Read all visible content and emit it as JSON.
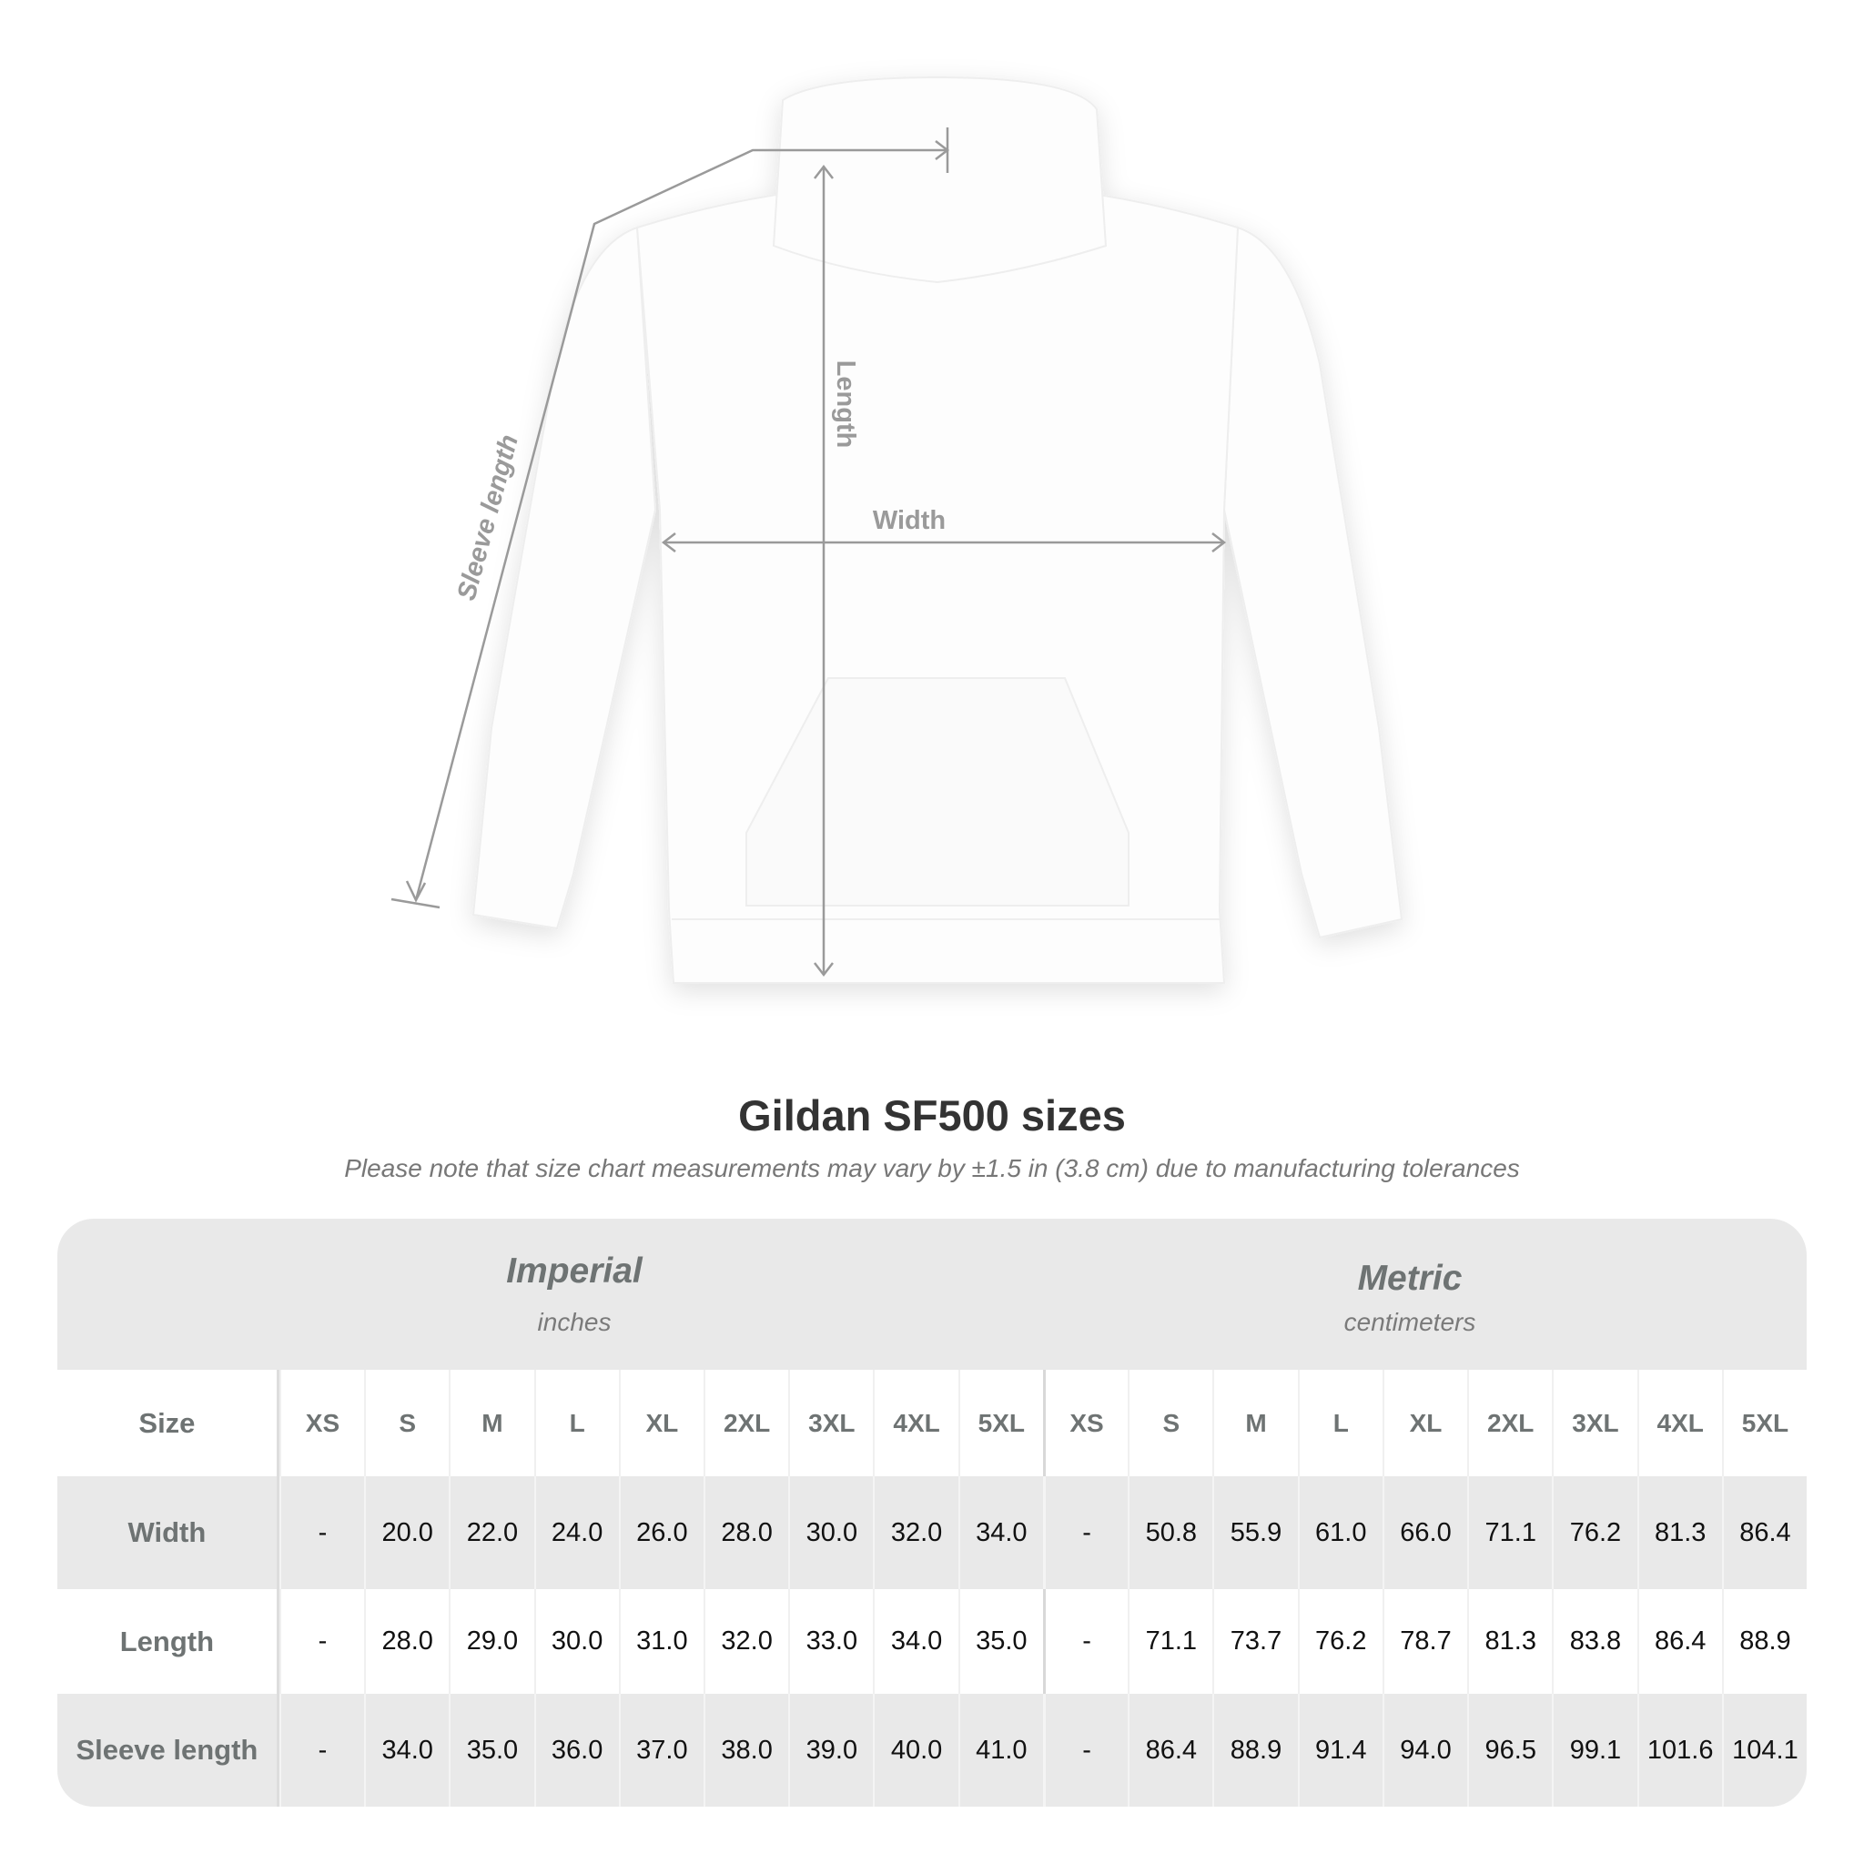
{
  "diagram": {
    "labels": {
      "sleeve": "Sleeve length",
      "length": "Length",
      "width": "Width"
    },
    "line_color": "#9a9a9a"
  },
  "title": "Gildan SF500 sizes",
  "subtitle": "Please note that size chart measurements may vary by ±1.5 in (3.8 cm) due to manufacturing tolerances",
  "table": {
    "imperial": {
      "name": "Imperial",
      "unit": "inches"
    },
    "metric": {
      "name": "Metric",
      "unit": "centimeters"
    },
    "size_label": "Size",
    "sizes": [
      "XS",
      "S",
      "M",
      "L",
      "XL",
      "2XL",
      "3XL",
      "4XL",
      "5XL",
      "XS",
      "S",
      "M",
      "L",
      "XL",
      "2XL",
      "3XL",
      "4XL",
      "5XL"
    ],
    "rows": [
      {
        "label": "Width",
        "values": [
          "-",
          "20.0",
          "22.0",
          "24.0",
          "26.0",
          "28.0",
          "30.0",
          "32.0",
          "34.0",
          "-",
          "50.8",
          "55.9",
          "61.0",
          "66.0",
          "71.1",
          "76.2",
          "81.3",
          "86.4"
        ]
      },
      {
        "label": "Length",
        "values": [
          "-",
          "28.0",
          "29.0",
          "30.0",
          "31.0",
          "32.0",
          "33.0",
          "34.0",
          "35.0",
          "-",
          "71.1",
          "73.7",
          "76.2",
          "78.7",
          "81.3",
          "83.8",
          "86.4",
          "88.9"
        ]
      },
      {
        "label": "Sleeve length",
        "values": [
          "-",
          "34.0",
          "35.0",
          "36.0",
          "37.0",
          "38.0",
          "39.0",
          "40.0",
          "41.0",
          "-",
          "86.4",
          "88.9",
          "91.4",
          "94.0",
          "96.5",
          "99.1",
          "101.6",
          "104.1"
        ]
      }
    ]
  }
}
